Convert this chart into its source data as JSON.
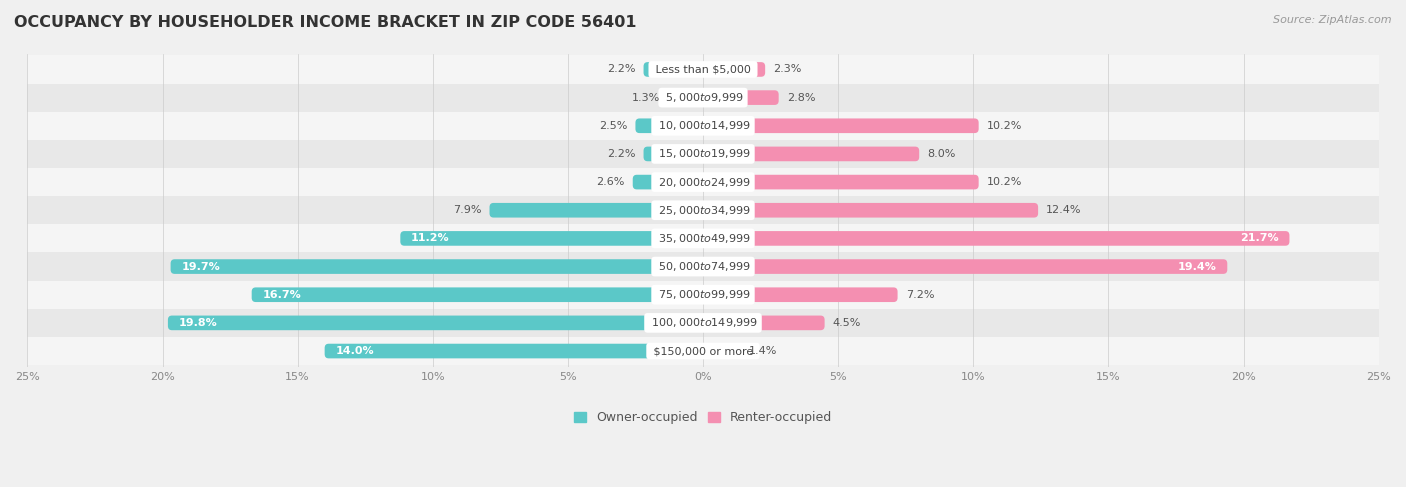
{
  "title": "OCCUPANCY BY HOUSEHOLDER INCOME BRACKET IN ZIP CODE 56401",
  "source": "Source: ZipAtlas.com",
  "categories": [
    "Less than $5,000",
    "$5,000 to $9,999",
    "$10,000 to $14,999",
    "$15,000 to $19,999",
    "$20,000 to $24,999",
    "$25,000 to $34,999",
    "$35,000 to $49,999",
    "$50,000 to $74,999",
    "$75,000 to $99,999",
    "$100,000 to $149,999",
    "$150,000 or more"
  ],
  "owner_values": [
    2.2,
    1.3,
    2.5,
    2.2,
    2.6,
    7.9,
    11.2,
    19.7,
    16.7,
    19.8,
    14.0
  ],
  "renter_values": [
    2.3,
    2.8,
    10.2,
    8.0,
    10.2,
    12.4,
    21.7,
    19.4,
    7.2,
    4.5,
    1.4
  ],
  "owner_color": "#5bc8c8",
  "renter_color": "#f48fb1",
  "background_color": "#f0f0f0",
  "row_color_odd": "#e8e8e8",
  "row_color_even": "#f5f5f5",
  "bar_height": 0.52,
  "xlim": 25.0,
  "title_fontsize": 11.5,
  "label_fontsize": 8,
  "category_fontsize": 8,
  "legend_fontsize": 9,
  "source_fontsize": 8,
  "owner_label_inside_threshold": 10.0,
  "renter_label_inside_threshold": 15.0
}
